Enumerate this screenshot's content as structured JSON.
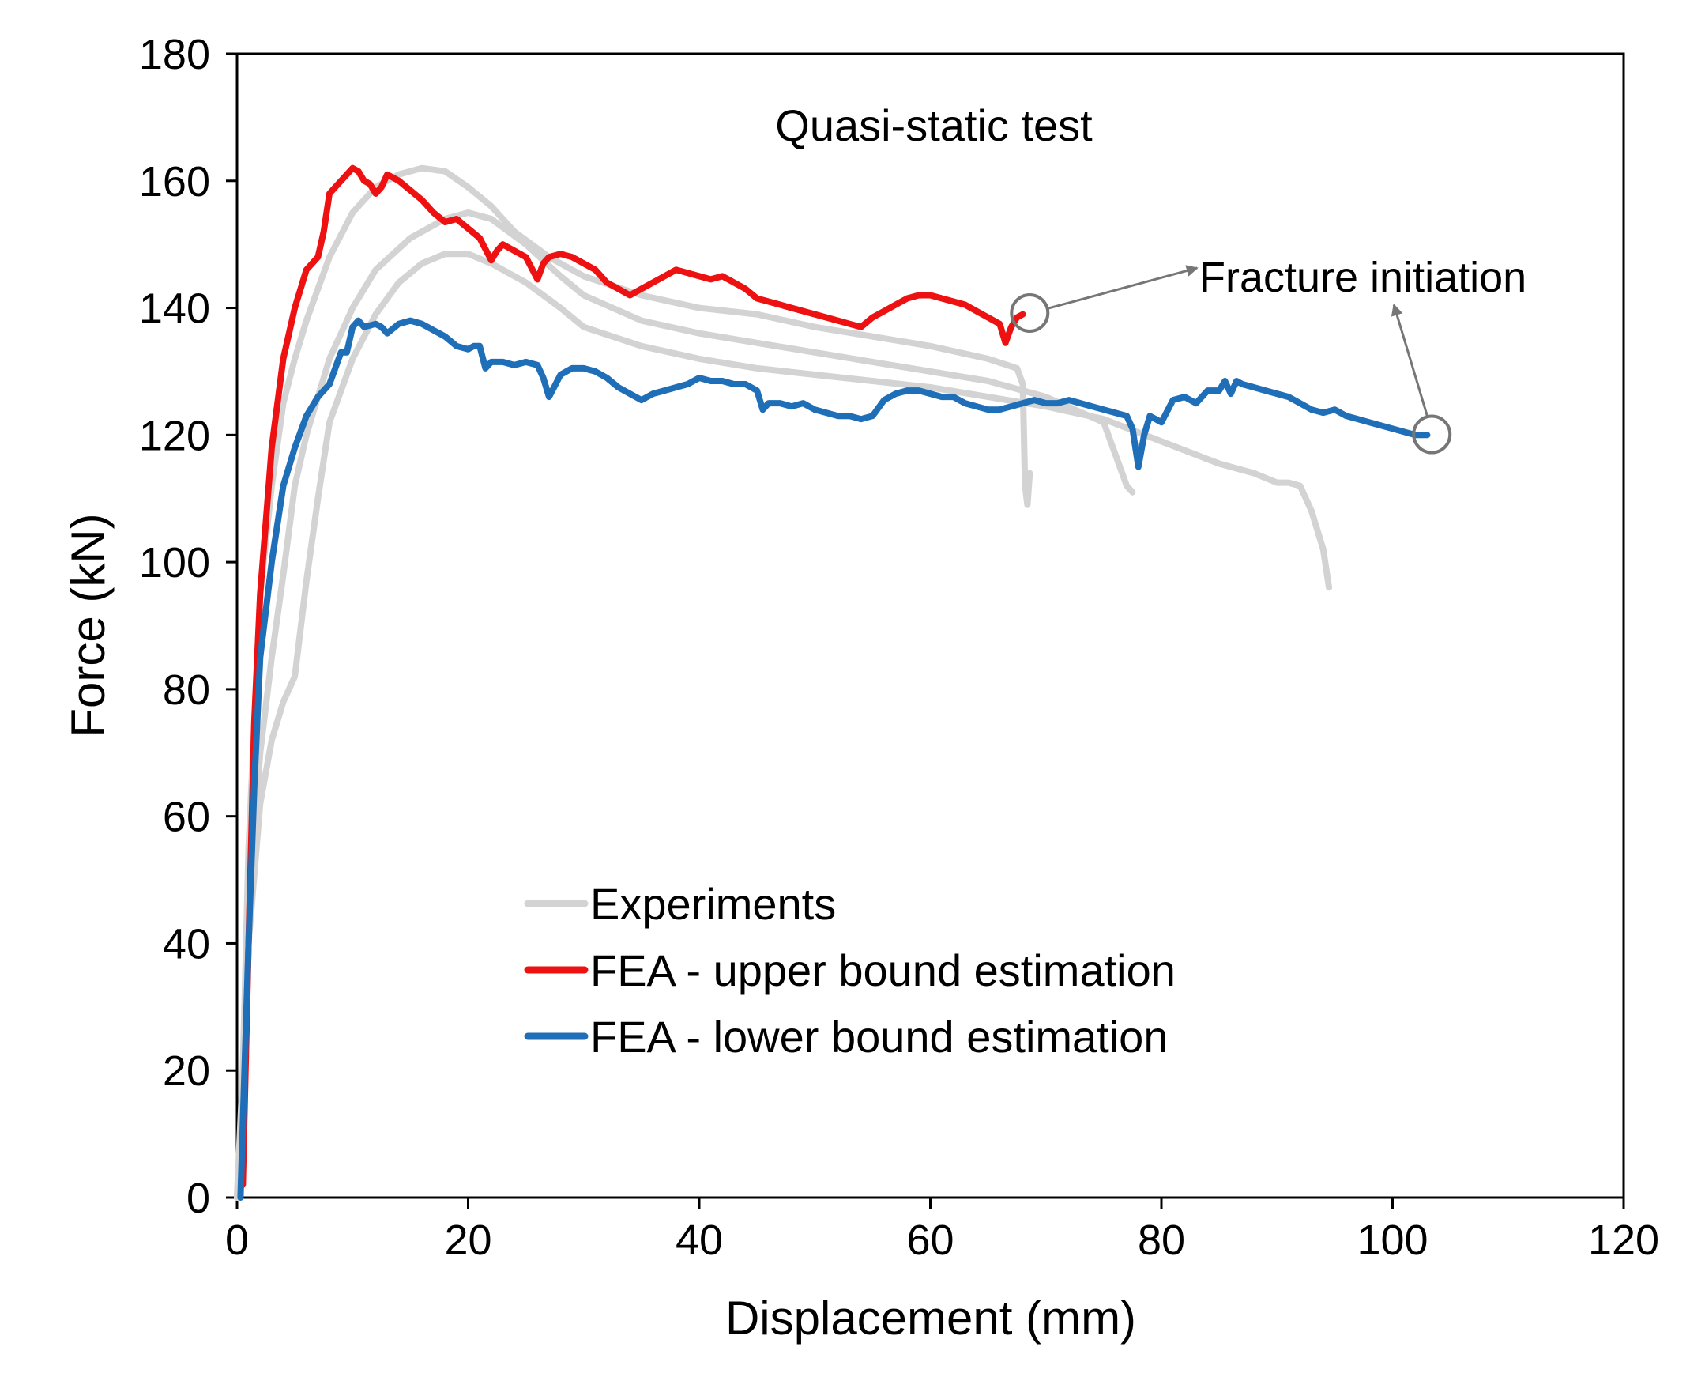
{
  "chart_data": {
    "type": "line",
    "title": "Quasi-static test",
    "xlabel": "Displacement (mm)",
    "ylabel": "Force (kN)",
    "xlim": [
      0,
      120
    ],
    "ylim": [
      0,
      180
    ],
    "xticks": [
      0,
      20,
      40,
      60,
      80,
      100,
      120
    ],
    "yticks": [
      0,
      20,
      40,
      60,
      80,
      100,
      120,
      140,
      160,
      180
    ],
    "grid": false,
    "legend_position": "lower-center",
    "series": [
      {
        "name": "Experiments",
        "legend": true,
        "color": "#d3d3d3",
        "x": [
          0,
          0.5,
          1,
          2,
          3,
          4,
          5,
          6,
          8,
          10,
          12,
          14,
          16,
          18,
          20,
          22,
          24,
          27,
          30,
          35,
          40,
          45,
          50,
          55,
          60,
          65,
          67.5,
          68,
          68.2,
          68.4,
          68.6
        ],
        "y": [
          0,
          20,
          55,
          95,
          112,
          125,
          132,
          138,
          148,
          155,
          159,
          161,
          162,
          161.5,
          159,
          156,
          152,
          148,
          145,
          142,
          140,
          139,
          137,
          135.5,
          134,
          132,
          130.5,
          128,
          112,
          109,
          114
        ]
      },
      {
        "name": "Experiments",
        "legend": false,
        "color": "#d3d3d3",
        "x": [
          0,
          0.5,
          1,
          2,
          3,
          4,
          5,
          6,
          7,
          8,
          10,
          12,
          15,
          18,
          20,
          22,
          25,
          28,
          30,
          35,
          40,
          45,
          50,
          55,
          60,
          65,
          70,
          75,
          76,
          77,
          77.5
        ],
        "y": [
          0,
          18,
          45,
          70,
          85,
          98,
          112,
          120,
          126,
          132,
          140,
          146,
          151,
          154,
          155,
          154,
          150,
          145,
          142,
          138,
          136,
          134.5,
          133,
          131.5,
          130,
          128.5,
          126,
          122,
          117,
          112,
          111
        ]
      },
      {
        "name": "Experiments",
        "legend": false,
        "color": "#d3d3d3",
        "x": [
          0,
          0.5,
          1,
          2,
          3,
          4,
          5,
          6,
          7,
          8,
          10,
          12,
          14,
          16,
          18,
          20,
          22,
          25,
          28,
          30,
          35,
          40,
          45,
          50,
          55,
          60,
          65,
          70,
          75,
          80,
          85,
          88,
          90,
          91,
          92,
          93,
          94,
          94.5
        ],
        "y": [
          0,
          15,
          40,
          62,
          72,
          78,
          82,
          97,
          110,
          122,
          132,
          139,
          144,
          147,
          148.5,
          148.5,
          147,
          144,
          140,
          137,
          134,
          132,
          130.5,
          129.5,
          128.5,
          127.5,
          126,
          124.5,
          122.5,
          119,
          115.5,
          114,
          112.5,
          112.5,
          112,
          108,
          102,
          96
        ]
      },
      {
        "name": "FEA - upper bound estimation",
        "legend": true,
        "color": "#ee1111",
        "x": [
          0.5,
          1,
          1.5,
          2,
          3,
          4,
          5,
          6,
          7,
          7.5,
          8,
          8.5,
          9,
          10,
          10.5,
          11,
          11.5,
          12,
          12.5,
          13,
          14,
          15,
          16,
          17,
          18,
          19,
          20,
          21,
          22,
          22.5,
          23,
          24,
          25,
          26,
          26.5,
          27,
          28,
          29,
          30,
          31,
          32,
          33,
          34,
          35,
          36,
          37,
          38,
          39,
          40,
          41,
          42,
          43,
          44,
          45,
          46,
          47,
          48,
          49,
          50,
          51,
          52,
          53,
          54,
          55,
          56,
          57,
          58,
          59,
          60,
          61,
          62,
          63,
          64,
          65,
          66,
          66.5,
          67,
          67.5,
          68
        ],
        "y": [
          2,
          40,
          75,
          95,
          118,
          132,
          140,
          146,
          148,
          152,
          158,
          159,
          160,
          162,
          161.5,
          160,
          159.5,
          158,
          159,
          161,
          160,
          158.5,
          157,
          155,
          153.5,
          154,
          152.5,
          151,
          147.5,
          149,
          150,
          149,
          148,
          144.5,
          147,
          148,
          148.5,
          148,
          147,
          146,
          144,
          143,
          142,
          143,
          144,
          145,
          146,
          145.5,
          145,
          144.5,
          145,
          144,
          143,
          141.5,
          141,
          140.5,
          140,
          139.5,
          139,
          138.5,
          138,
          137.5,
          137,
          138.5,
          139.5,
          140.5,
          141.5,
          142,
          142,
          141.5,
          141,
          140.5,
          139.5,
          138.5,
          137.5,
          134.5,
          137,
          138.5,
          139
        ]
      },
      {
        "name": "FEA - lower bound estimation",
        "legend": true,
        "color": "#1f6eb8",
        "x": [
          0.3,
          1,
          1.5,
          2,
          3,
          4,
          5,
          6,
          7,
          8,
          9,
          9.5,
          10,
          10.5,
          11,
          12,
          12.5,
          13,
          14,
          15,
          16,
          17,
          18,
          19,
          20,
          20.5,
          21,
          21.5,
          22,
          23,
          24,
          25,
          26,
          26.5,
          27,
          28,
          29,
          30,
          31,
          32,
          33,
          34,
          35,
          36,
          37,
          38,
          39,
          40,
          41,
          42,
          43,
          44,
          45,
          45.5,
          46,
          47,
          48,
          49,
          50,
          51,
          52,
          53,
          54,
          55,
          56,
          57,
          58,
          59,
          60,
          61,
          62,
          63,
          64,
          65,
          66,
          67,
          68,
          69,
          70,
          71,
          72,
          73,
          74,
          75,
          76,
          77,
          77.5,
          78,
          78.5,
          79,
          80,
          81,
          82,
          83,
          84,
          85,
          85.5,
          86,
          86.5,
          87,
          88,
          89,
          90,
          91,
          92,
          93,
          94,
          95,
          96,
          97,
          98,
          99,
          100,
          101,
          102,
          103
        ],
        "y": [
          0,
          40,
          65,
          85,
          100,
          112,
          118,
          123,
          126,
          128,
          133,
          133,
          137,
          138,
          137,
          137.5,
          137,
          136,
          137.5,
          138,
          137.5,
          136.5,
          135.5,
          134,
          133.5,
          134,
          134,
          130.5,
          131.5,
          131.5,
          131,
          131.5,
          131,
          129,
          126,
          129.5,
          130.5,
          130.5,
          130,
          129,
          127.5,
          126.5,
          125.5,
          126.5,
          127,
          127.5,
          128,
          129,
          128.5,
          128.5,
          128,
          128,
          127,
          124,
          125,
          125,
          124.5,
          125,
          124,
          123.5,
          123,
          123,
          122.5,
          123,
          125.5,
          126.5,
          127,
          127,
          126.5,
          126,
          126,
          125,
          124.5,
          124,
          124,
          124.5,
          125,
          125.5,
          125,
          125,
          125.5,
          125,
          124.5,
          124,
          123.5,
          123,
          121,
          115,
          120,
          123,
          122,
          125.5,
          126,
          125,
          127,
          127,
          128.5,
          126.5,
          128.5,
          128,
          127.5,
          127,
          126.5,
          126,
          125,
          124,
          123.5,
          124,
          123,
          122.5,
          122,
          121.5,
          121,
          120.5,
          120,
          120
        ]
      }
    ],
    "annotations": [
      {
        "text": "Fracture initiation",
        "arrows_to": [
          "FEA - upper bound estimation",
          "FEA - lower bound estimation"
        ]
      }
    ]
  },
  "annotation": {
    "label": "Fracture initiation",
    "color": "#767676",
    "marker_points": [
      {
        "x": 68.6,
        "y": 139.2
      },
      {
        "x": 103.4,
        "y": 120.1
      }
    ]
  }
}
